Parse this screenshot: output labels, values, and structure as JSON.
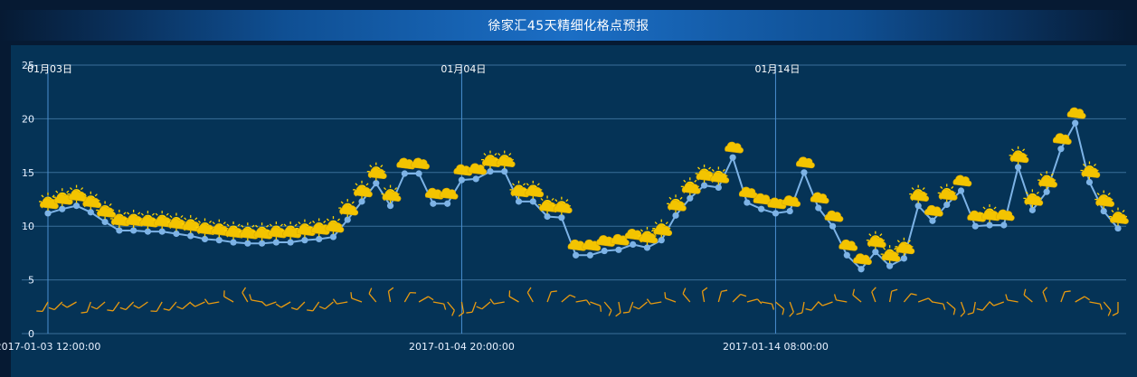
{
  "header": {
    "title": "徐家汇45天精细化格点预报"
  },
  "colors": {
    "line": "#7db3e6",
    "point": "#7db3e6",
    "grid": "#3a6f99",
    "marker_line": "#4a8fd0",
    "icon_sun": "#ffd400",
    "icon_cloud": "#f3c400",
    "wind_barb": "#e89a10"
  },
  "chart_data": {
    "type": "line",
    "ylim": [
      0,
      25
    ],
    "yticks": [
      0,
      5,
      10,
      15,
      20,
      25
    ],
    "grid": true,
    "x_labels": [
      {
        "index": 0,
        "label": "2017-01-03 12:00:00"
      },
      {
        "index": 29,
        "label": "2017-01-04 20:00:00"
      },
      {
        "index": 51,
        "label": "2017-01-14 08:00:00"
      }
    ],
    "markers": [
      {
        "index": 0,
        "label": "01月03日"
      },
      {
        "index": 29,
        "label": "01月04日"
      },
      {
        "index": 51,
        "label": "01月14日"
      }
    ],
    "series": [
      {
        "values": [
          11.2,
          11.6,
          11.9,
          11.3,
          10.4,
          9.6,
          9.6,
          9.5,
          9.5,
          9.3,
          9.1,
          8.8,
          8.7,
          8.5,
          8.4,
          8.4,
          8.5,
          8.5,
          8.7,
          8.8,
          9.0,
          10.6,
          12.3,
          14.0,
          11.9,
          14.9,
          14.9,
          12.1,
          12.1,
          14.3,
          14.4,
          15.1,
          15.1,
          12.3,
          12.3,
          10.9,
          10.8,
          7.3,
          7.3,
          7.7,
          7.8,
          8.3,
          8.0,
          8.7,
          11.0,
          12.6,
          13.8,
          13.6,
          16.4,
          12.2,
          11.6,
          11.2,
          11.4,
          15.0,
          11.7,
          10.0,
          7.3,
          6.0,
          7.6,
          6.3,
          7.0,
          11.9,
          10.5,
          12.0,
          13.3,
          10.0,
          10.1,
          10.1,
          15.5,
          11.5,
          13.2,
          17.2,
          19.6,
          14.1,
          11.4,
          9.8
        ]
      }
    ],
    "weather_icons": [
      "sun-cloud",
      "sun-cloud",
      "sun-cloud",
      "sun-cloud",
      "sun-cloud",
      "sun-cloud",
      "sun-cloud",
      "sun-cloud",
      "sun-cloud",
      "sun-cloud",
      "sun-cloud",
      "sun-cloud",
      "sun-cloud",
      "sun-cloud",
      "sun-cloud",
      "sun-cloud",
      "sun-cloud",
      "sun-cloud",
      "sun-cloud",
      "sun-cloud",
      "sun-cloud",
      "sun-cloud",
      "sun-cloud",
      "sun-cloud",
      "sun-cloud",
      "cloud",
      "cloud",
      "cloud",
      "cloud",
      "cloud",
      "cloud",
      "sun-cloud",
      "sun-cloud",
      "sun-cloud",
      "sun-cloud",
      "sun-cloud",
      "sun-cloud",
      "cloud",
      "cloud",
      "cloud",
      "cloud",
      "cloud",
      "sun-cloud",
      "sun-cloud",
      "sun-cloud",
      "sun-cloud",
      "sun-cloud",
      "sun-cloud",
      "cloud",
      "cloud",
      "cloud",
      "cloud",
      "cloud",
      "cloud",
      "cloud",
      "cloud",
      "cloud",
      "cloud",
      "sun-cloud",
      "sun-cloud",
      "sun-cloud",
      "sun-cloud",
      "cloud",
      "sun-cloud",
      "cloud",
      "cloud",
      "sun-cloud",
      "cloud",
      "sun-cloud",
      "sun-cloud",
      "sun-cloud",
      "cloud",
      "cloud",
      "sun-cloud",
      "sun-cloud",
      "sun-cloud"
    ],
    "wind_directions": [
      210,
      225,
      240,
      200,
      230,
      215,
      225,
      235,
      210,
      220,
      230,
      245,
      260,
      300,
      330,
      280,
      250,
      240,
      225,
      215,
      230,
      260,
      290,
      320,
      350,
      30,
      60,
      100,
      140,
      170,
      200,
      230,
      260,
      300,
      330,
      20,
      50,
      80,
      110,
      140,
      170,
      200,
      230,
      260,
      290,
      320,
      350,
      15,
      45,
      75,
      100,
      130,
      160,
      190,
      220,
      250,
      280,
      310,
      340,
      10,
      40,
      70,
      100,
      130,
      160,
      190,
      220,
      250,
      280,
      310,
      340,
      20,
      60,
      100,
      140,
      180
    ]
  }
}
